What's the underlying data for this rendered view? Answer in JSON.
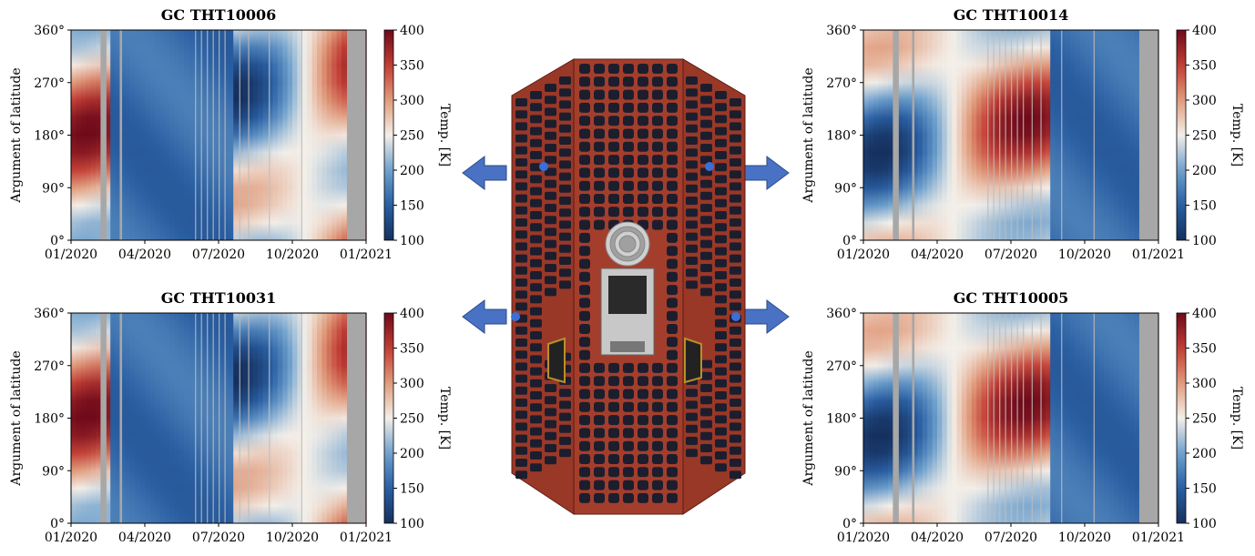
{
  "colors": {
    "cold": "#2a5fa3",
    "mid": "#f3efe9",
    "hot": "#a21a22",
    "gap": "#a7a7a7",
    "sat_body": "#9a3828",
    "cell": "#1c1e2e",
    "arrow": "#4a72c4"
  },
  "charts": [
    {
      "id": "p1",
      "title": "GC THT10006",
      "ylabel": "Argument of latitude",
      "cbar_label": "Temp. [K]",
      "cold_phase": 0
    },
    {
      "id": "p2",
      "title": "GC THT10014",
      "ylabel": "Argument of latitude",
      "cbar_label": "Temp. [K]",
      "cold_phase": 1
    },
    {
      "id": "p3",
      "title": "GC THT10031",
      "ylabel": "Argument of latitude",
      "cbar_label": "Temp. [K]",
      "cold_phase": 0
    },
    {
      "id": "p4",
      "title": "GC THT10005",
      "ylabel": "Argument of latitude",
      "cbar_label": "Temp. [K]",
      "cold_phase": 1
    }
  ],
  "chart_data": [
    {
      "type": "heatmap",
      "title": "GC THT10006",
      "ylabel": "Argument of latitude",
      "x_ticks": [
        "01/2020",
        "04/2020",
        "07/2020",
        "10/2020",
        "01/2021"
      ],
      "y_ticks": [
        "0°",
        "90°",
        "180°",
        "270°",
        "360°"
      ],
      "ylim": [
        0,
        360
      ],
      "colorbar": {
        "label": "Temp. [K]",
        "range": [
          100,
          400
        ],
        "ticks": [
          "100",
          "150",
          "200",
          "250",
          "300",
          "350",
          "400"
        ]
      }
    },
    {
      "type": "heatmap",
      "title": "GC THT10014",
      "ylabel": "Argument of latitude",
      "x_ticks": [
        "01/2020",
        "04/2020",
        "07/2020",
        "10/2020",
        "01/2021"
      ],
      "y_ticks": [
        "0°",
        "90°",
        "180°",
        "270°",
        "360°"
      ],
      "ylim": [
        0,
        360
      ],
      "colorbar": {
        "label": "Temp. [K]",
        "range": [
          100,
          400
        ],
        "ticks": [
          "100",
          "150",
          "200",
          "250",
          "300",
          "350",
          "400"
        ]
      }
    },
    {
      "type": "heatmap",
      "title": "GC THT10031",
      "ylabel": "Argument of latitude",
      "x_ticks": [
        "01/2020",
        "04/2020",
        "07/2020",
        "10/2020",
        "01/2021"
      ],
      "y_ticks": [
        "0°",
        "90°",
        "180°",
        "270°",
        "360°"
      ],
      "ylim": [
        0,
        360
      ],
      "colorbar": {
        "label": "Temp. [K]",
        "range": [
          100,
          400
        ],
        "ticks": [
          "100",
          "150",
          "200",
          "250",
          "300",
          "350",
          "400"
        ]
      }
    },
    {
      "type": "heatmap",
      "title": "GC THT10005",
      "ylabel": "Argument of latitude",
      "x_ticks": [
        "01/2020",
        "04/2020",
        "07/2020",
        "10/2020",
        "01/2021"
      ],
      "y_ticks": [
        "0°",
        "90°",
        "180°",
        "270°",
        "360°"
      ],
      "ylim": [
        0,
        360
      ],
      "colorbar": {
        "label": "Temp. [K]",
        "range": [
          100,
          400
        ],
        "ticks": [
          "100",
          "150",
          "200",
          "250",
          "300",
          "350",
          "400"
        ]
      }
    }
  ]
}
